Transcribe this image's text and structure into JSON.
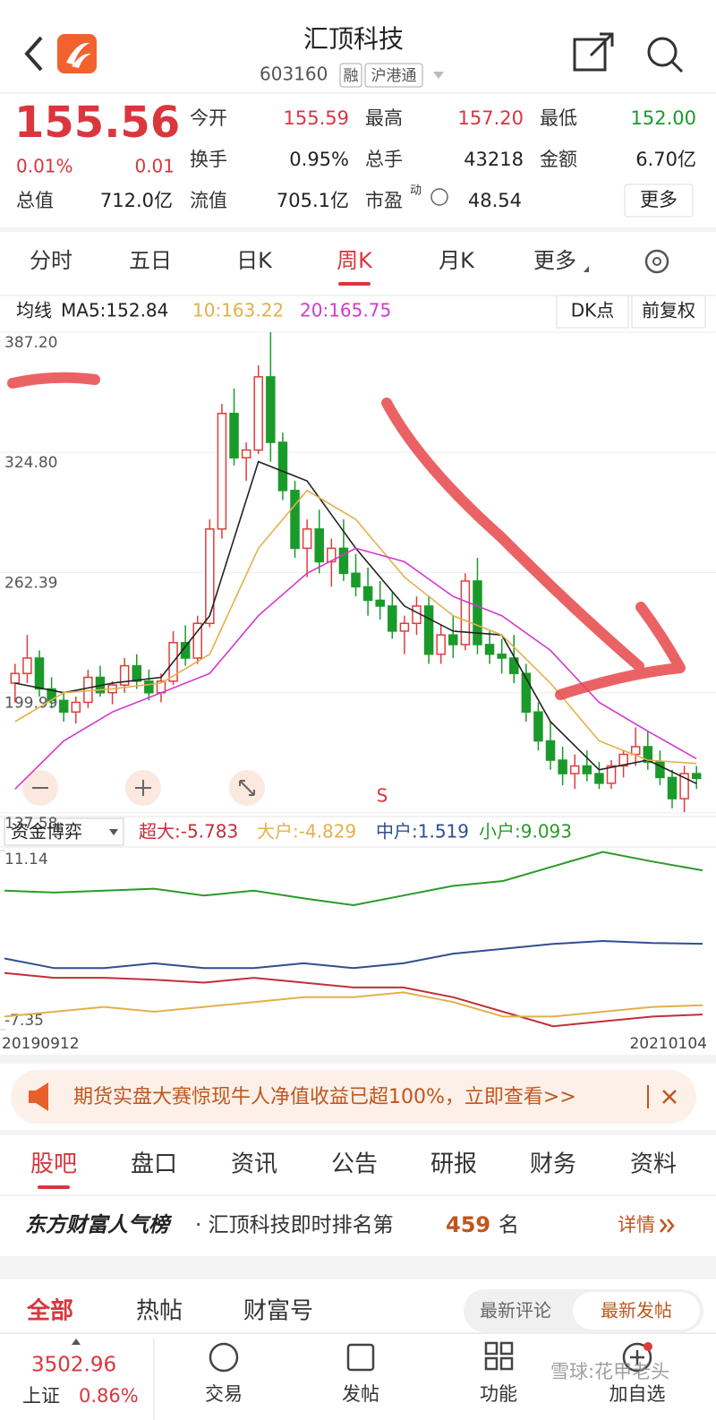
{
  "header": {
    "title": "汇顶科技",
    "code": "603160",
    "tags": [
      "融",
      "沪港通"
    ]
  },
  "quote": {
    "price": "155.56",
    "change_pct": "0.01%",
    "change": "0.01",
    "color": "#d9363e",
    "stats": [
      [
        {
          "label": "今开",
          "value": "155.59",
          "color": "#d9363e"
        },
        {
          "label": "最高",
          "value": "157.20",
          "color": "#d9363e"
        },
        {
          "label": "最低",
          "value": "152.00",
          "color": "#1a9a2a"
        }
      ],
      [
        {
          "label": "换手",
          "value": "0.95%"
        },
        {
          "label": "总手",
          "value": "43218"
        },
        {
          "label": "金额",
          "value": "6.70亿"
        }
      ],
      [
        {
          "label": "总值",
          "value": "712.0亿"
        },
        {
          "label": "流值",
          "value": "705.1亿"
        },
        {
          "label": "市盈",
          "sup": "动",
          "value": "48.54"
        }
      ]
    ],
    "more": "更多"
  },
  "period_tabs": {
    "items": [
      "分时",
      "五日",
      "日K",
      "周K",
      "月K",
      "更多"
    ],
    "active": 3
  },
  "kline": {
    "type": "candlestick",
    "ma_title": "均线",
    "buttons": [
      "DK点",
      "前复权"
    ],
    "ylim": [
      137.58,
      387.2
    ],
    "yticks": [
      {
        "value": 387.2,
        "label": "387.20"
      },
      {
        "value": 324.8,
        "label": "324.80"
      },
      262.39,
      199.99,
      137.58
    ],
    "up_color": "#e03c3c",
    "down_color": "#1a9a2a",
    "signal": "S",
    "candles": [
      [
        205,
        215,
        195,
        210
      ],
      [
        210,
        230,
        205,
        218
      ],
      [
        218,
        222,
        198,
        202
      ],
      [
        202,
        208,
        192,
        196
      ],
      [
        196,
        200,
        185,
        190
      ],
      [
        190,
        198,
        184,
        195
      ],
      [
        195,
        212,
        192,
        208
      ],
      [
        208,
        214,
        198,
        200
      ],
      [
        200,
        206,
        194,
        204
      ],
      [
        204,
        218,
        200,
        214
      ],
      [
        214,
        220,
        202,
        206
      ],
      [
        206,
        212,
        196,
        200
      ],
      [
        200,
        210,
        195,
        206
      ],
      [
        206,
        232,
        204,
        226
      ],
      [
        226,
        235,
        214,
        218
      ],
      [
        218,
        240,
        215,
        236
      ],
      [
        236,
        290,
        234,
        285
      ],
      [
        285,
        350,
        280,
        345
      ],
      [
        345,
        358,
        318,
        322
      ],
      [
        322,
        330,
        310,
        326
      ],
      [
        326,
        370,
        324,
        364
      ],
      [
        364,
        387.2,
        320,
        330
      ],
      [
        330,
        335,
        300,
        305
      ],
      [
        305,
        310,
        270,
        275
      ],
      [
        275,
        290,
        260,
        285
      ],
      [
        285,
        295,
        262,
        268
      ],
      [
        268,
        280,
        255,
        275
      ],
      [
        275,
        290,
        258,
        262
      ],
      [
        262,
        272,
        250,
        255
      ],
      [
        255,
        265,
        240,
        248
      ],
      [
        248,
        258,
        238,
        245
      ],
      [
        245,
        252,
        228,
        232
      ],
      [
        232,
        240,
        220,
        236
      ],
      [
        236,
        250,
        230,
        245
      ],
      [
        245,
        250,
        215,
        220
      ],
      [
        220,
        235,
        215,
        230
      ],
      [
        230,
        240,
        218,
        225
      ],
      [
        225,
        262,
        222,
        258
      ],
      [
        258,
        270,
        220,
        225
      ],
      [
        225,
        232,
        215,
        220
      ],
      [
        220,
        228,
        210,
        218
      ],
      [
        218,
        230,
        205,
        210
      ],
      [
        210,
        215,
        185,
        190
      ],
      [
        190,
        195,
        170,
        175
      ],
      [
        175,
        185,
        160,
        165
      ],
      [
        165,
        172,
        152,
        158
      ],
      [
        158,
        168,
        150,
        162
      ],
      [
        162,
        170,
        154,
        158
      ],
      [
        158,
        164,
        150,
        153
      ],
      [
        153,
        165,
        150,
        162
      ],
      [
        162,
        170,
        156,
        168
      ],
      [
        168,
        182,
        162,
        172
      ],
      [
        172,
        180,
        160,
        164
      ],
      [
        164,
        170,
        152,
        156
      ],
      [
        156,
        160,
        140,
        145
      ],
      [
        145,
        162,
        138,
        158
      ],
      [
        158,
        162,
        150,
        155.56
      ]
    ],
    "ma": [
      {
        "label": "MA5:152.84",
        "color": "#222222",
        "x": [
          0,
          4,
          8,
          12,
          16,
          20,
          24,
          28,
          32,
          36,
          40,
          44,
          48,
          52,
          56
        ],
        "values": [
          205,
          200,
          205,
          208,
          240,
          320,
          310,
          275,
          245,
          232,
          230,
          185,
          160,
          165,
          152.84
        ]
      },
      {
        "label": "10:163.22",
        "color": "#e3b04b",
        "x": [
          0,
          4,
          8,
          12,
          16,
          20,
          24,
          28,
          32,
          36,
          40,
          44,
          48,
          52,
          56
        ],
        "values": [
          185,
          200,
          202,
          205,
          220,
          275,
          305,
          290,
          260,
          240,
          230,
          205,
          175,
          165,
          163.22
        ]
      },
      {
        "label": "20:165.75",
        "color": "#d23ad0",
        "x": [
          0,
          4,
          8,
          12,
          16,
          20,
          24,
          28,
          32,
          36,
          40,
          44,
          48,
          52,
          56
        ],
        "values": [
          150,
          175,
          190,
          200,
          210,
          240,
          262,
          275,
          268,
          250,
          240,
          222,
          195,
          180,
          165.75
        ]
      }
    ]
  },
  "fund_flow": {
    "type": "line",
    "selector": "资金博弈",
    "ylim": [
      -7.35,
      11.14
    ],
    "yticks": [
      11.14,
      -7.35
    ],
    "x_start": "20190912",
    "x_end": "20210104",
    "series": [
      {
        "label": "超大:-5.783",
        "color": "#c0303a",
        "values": [
          -1.5,
          -2,
          -2,
          -2.2,
          -2.5,
          -2,
          -2.5,
          -3,
          -3,
          -4,
          -5.5,
          -7,
          -6.5,
          -6,
          -5.783
        ]
      },
      {
        "label": "大户:-4.829",
        "color": "#e3b04b",
        "values": [
          -6,
          -5.5,
          -5,
          -5.5,
          -5,
          -4.5,
          -4,
          -4,
          -3.5,
          -4.5,
          -6,
          -6,
          -5.5,
          -5,
          -4.829
        ]
      },
      {
        "label": "中户:1.519",
        "color": "#2f4f8f",
        "values": [
          0,
          -1,
          -1,
          -0.5,
          -1,
          -1,
          -0.5,
          -1,
          -0.5,
          0.5,
          1,
          1.5,
          1.8,
          1.6,
          1.519
        ]
      },
      {
        "label": "小户:9.093",
        "color": "#2a9a2a",
        "values": [
          7,
          6.8,
          7,
          7.2,
          6.5,
          7,
          6.2,
          5.5,
          6.5,
          7.5,
          8,
          9.5,
          11,
          10,
          9.093
        ]
      }
    ]
  },
  "banner": {
    "text": "期货实盘大赛惊现牛人净值收益已超100%，立即查看>>"
  },
  "section_tabs": {
    "items": [
      "股吧",
      "盘口",
      "资讯",
      "公告",
      "研报",
      "财务",
      "资料"
    ],
    "active": 0
  },
  "rank": {
    "brand": "东方财富人气榜",
    "text": "· 汇顶科技即时排名第",
    "rank": "459",
    "suffix": "名",
    "link": "详情"
  },
  "post_tabs": {
    "items": [
      "全部",
      "热帖",
      "财富号"
    ],
    "active": 0,
    "sort": [
      "最新评论",
      "最新发帖"
    ],
    "sort_active": 1
  },
  "bottom_bar": {
    "index_value": "3502.96",
    "index_name": "上证",
    "index_change": "0.86%",
    "nav": [
      "交易",
      "发帖",
      "功能",
      "加自选"
    ],
    "watermark": "雪球:花甲老头"
  }
}
